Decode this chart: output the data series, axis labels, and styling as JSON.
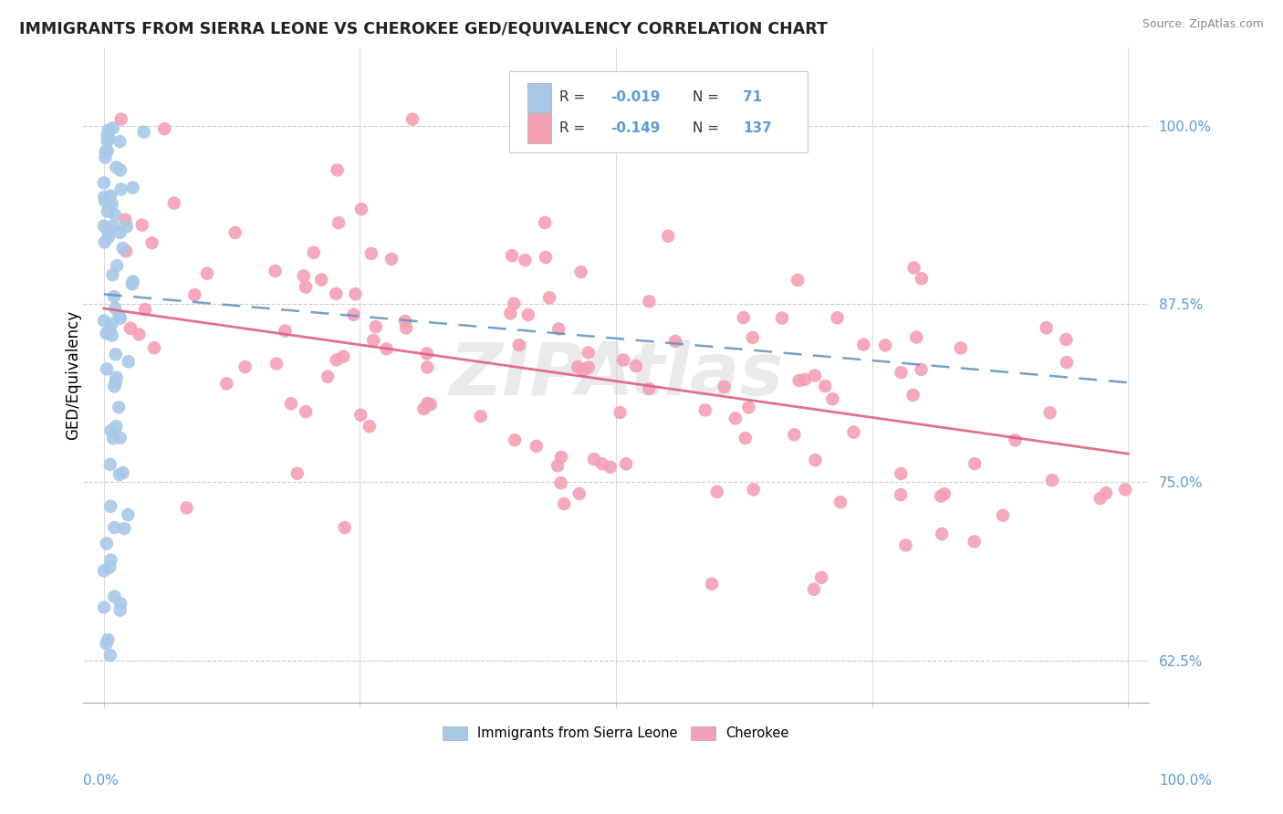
{
  "title": "IMMIGRANTS FROM SIERRA LEONE VS CHEROKEE GED/EQUIVALENCY CORRELATION CHART",
  "source": "Source: ZipAtlas.com",
  "ylabel": "GED/Equivalency",
  "ytick_labels": [
    "62.5%",
    "75.0%",
    "87.5%",
    "100.0%"
  ],
  "ytick_values": [
    0.625,
    0.75,
    0.875,
    1.0
  ],
  "xlim": [
    -0.02,
    1.02
  ],
  "ylim": [
    0.595,
    1.055
  ],
  "legend1_r": "-0.019",
  "legend1_n": "71",
  "legend2_r": "-0.149",
  "legend2_n": "137",
  "color_blue": "#A8C8E8",
  "color_pink": "#F4A0B4",
  "color_blue_line": "#6090C0",
  "color_pink_line": "#E06080",
  "watermark": "ZIPAtlas",
  "blue_trend_start": 0.882,
  "blue_trend_end": 0.82,
  "pink_trend_start": 0.872,
  "pink_trend_end": 0.77
}
